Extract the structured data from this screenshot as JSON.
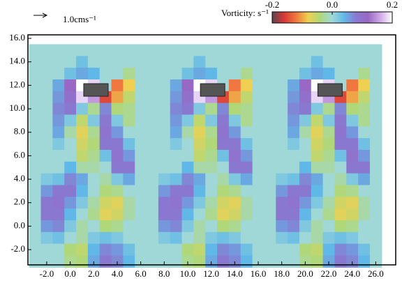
{
  "chart_data": {
    "type": "heatmap",
    "title": "Vorticity: s⁻¹",
    "scale_label": "1.0cms⁻¹",
    "x": [
      -3,
      -2,
      -1,
      0,
      1,
      2,
      3,
      4,
      5,
      6,
      7,
      8,
      9,
      10,
      11,
      12,
      13,
      14,
      15,
      16,
      17,
      18,
      19,
      20,
      21,
      22,
      23,
      24,
      25,
      26
    ],
    "y": [
      15,
      14,
      13,
      12,
      11,
      10,
      9,
      8,
      7,
      6,
      5,
      4,
      3,
      2,
      1,
      0,
      -1,
      -2,
      -3
    ],
    "values": [
      [
        0,
        0,
        0,
        0,
        0,
        0,
        0,
        0,
        0,
        0,
        0,
        0,
        0,
        0,
        0,
        0,
        0,
        0,
        0,
        0,
        0,
        0,
        0,
        0,
        0,
        0,
        0,
        0,
        0,
        0
      ],
      [
        0,
        0,
        0,
        0,
        0.03,
        0,
        0,
        0,
        0,
        0,
        0,
        0,
        0,
        0,
        0.03,
        0,
        0,
        0,
        0,
        0,
        0,
        0,
        0,
        0,
        0.03,
        0,
        0,
        0,
        0,
        0
      ],
      [
        0,
        0,
        0,
        0.03,
        0.05,
        0.04,
        0,
        0,
        -0.03,
        0,
        0,
        0,
        0,
        0.03,
        0.05,
        0.04,
        0,
        0,
        -0.03,
        0,
        0,
        0,
        0,
        0.03,
        0.05,
        0.04,
        0,
        0,
        -0.03,
        0
      ],
      [
        0,
        0,
        0.05,
        0.12,
        0.2,
        0.18,
        0,
        -0.12,
        -0.08,
        0,
        0,
        0,
        0.05,
        0.12,
        0.2,
        0.18,
        0,
        -0.12,
        -0.08,
        0,
        0,
        0,
        0.05,
        0.12,
        0.2,
        0.18,
        0,
        -0.12,
        -0.08,
        0
      ],
      [
        0,
        0,
        0.06,
        0.1,
        0.18,
        0.15,
        -0.15,
        -0.1,
        -0.05,
        0,
        0,
        0,
        0.06,
        0.1,
        0.18,
        0.15,
        -0.15,
        -0.1,
        -0.05,
        0,
        0,
        0,
        0.06,
        0.1,
        0.18,
        0.15,
        -0.15,
        -0.1,
        -0.05,
        0
      ],
      [
        0,
        0,
        0.07,
        0.08,
        0.02,
        -0.03,
        0.07,
        -0.04,
        -0.03,
        0,
        0,
        0,
        0.07,
        0.08,
        0.02,
        -0.03,
        0.07,
        -0.04,
        -0.03,
        0,
        0,
        0,
        0.07,
        0.08,
        0.02,
        -0.03,
        0.07,
        -0.04,
        -0.03,
        0
      ],
      [
        0,
        0,
        0.06,
        0.02,
        -0.05,
        0.02,
        0.08,
        0.02,
        -0.03,
        0,
        0,
        0,
        0.06,
        0.02,
        -0.05,
        0.02,
        0.08,
        0.02,
        -0.03,
        0,
        0,
        0,
        0.06,
        0.02,
        -0.05,
        0.02,
        0.08,
        0.02,
        -0.03,
        0
      ],
      [
        0,
        0,
        0.05,
        -0.02,
        -0.07,
        -0.03,
        0.09,
        0.06,
        0,
        0,
        0,
        0,
        0.05,
        -0.02,
        -0.07,
        -0.03,
        0.09,
        0.06,
        0,
        0,
        0,
        0,
        0.05,
        -0.02,
        -0.07,
        -0.03,
        0.09,
        0.06,
        0,
        0
      ],
      [
        0,
        0,
        0.02,
        0,
        -0.06,
        -0.04,
        0.08,
        0.08,
        0.03,
        0,
        0,
        0,
        0.02,
        0,
        -0.06,
        -0.04,
        0.08,
        0.08,
        0.03,
        0,
        0,
        0,
        0.02,
        0,
        -0.06,
        -0.04,
        0.08,
        0.08,
        0.03,
        0
      ],
      [
        0,
        0,
        0,
        0,
        -0.05,
        -0.03,
        0.03,
        0.09,
        0.06,
        0,
        0,
        0,
        0,
        0,
        -0.05,
        -0.03,
        0.03,
        0.09,
        0.06,
        0,
        0,
        0,
        0,
        0,
        -0.05,
        -0.03,
        0.03,
        0.09,
        0.06,
        0
      ],
      [
        0,
        0,
        0,
        0.04,
        -0.02,
        -0.02,
        0,
        0.08,
        0.08,
        0,
        0,
        0,
        0,
        0.04,
        -0.02,
        -0.02,
        0,
        0.08,
        0.08,
        0,
        0,
        0,
        0,
        0.04,
        -0.02,
        -0.02,
        0,
        0.08,
        0.08,
        0
      ],
      [
        0,
        0.02,
        0.03,
        0.07,
        0.05,
        0,
        -0.02,
        0.02,
        0.05,
        0,
        0,
        0.02,
        0.03,
        0.07,
        0.05,
        0,
        -0.02,
        0.02,
        0.05,
        0,
        0,
        0.02,
        0.03,
        0.07,
        0.05,
        0,
        -0.02,
        0.02,
        0.05,
        0
      ],
      [
        0,
        0.06,
        0.08,
        0.08,
        0.04,
        0,
        -0.04,
        -0.03,
        0,
        0,
        0,
        0.06,
        0.08,
        0.08,
        0.04,
        0,
        -0.04,
        -0.03,
        0,
        0,
        0,
        0.06,
        0.08,
        0.08,
        0.04,
        0,
        -0.04,
        -0.03,
        0,
        0
      ],
      [
        0,
        0.08,
        0.09,
        0.06,
        0.02,
        -0.02,
        -0.06,
        -0.07,
        -0.02,
        0,
        0,
        0.08,
        0.09,
        0.06,
        0.02,
        -0.02,
        -0.06,
        -0.07,
        -0.02,
        0,
        0,
        0.08,
        0.09,
        0.06,
        0.02,
        -0.02,
        -0.06,
        -0.07,
        -0.02,
        0
      ],
      [
        0,
        0.08,
        0.08,
        0.04,
        0,
        -0.03,
        -0.07,
        -0.06,
        -0.02,
        0,
        0,
        0.08,
        0.08,
        0.04,
        0,
        -0.03,
        -0.07,
        -0.06,
        -0.02,
        0,
        0,
        0.08,
        0.08,
        0.04,
        0,
        -0.03,
        -0.07,
        -0.06,
        -0.02,
        0
      ],
      [
        0,
        0.06,
        0.07,
        0.02,
        -0.02,
        0,
        -0.04,
        -0.03,
        0,
        0,
        0,
        0.06,
        0.07,
        0.02,
        -0.02,
        0,
        -0.04,
        -0.03,
        0,
        0,
        0,
        0.06,
        0.07,
        0.02,
        -0.02,
        0,
        -0.04,
        -0.03,
        0,
        0
      ],
      [
        0,
        0.02,
        0.03,
        0,
        -0.02,
        0.02,
        0.03,
        0.02,
        0,
        0,
        0,
        0.02,
        0.03,
        0,
        -0.02,
        0.02,
        0.03,
        0.02,
        0,
        0,
        0,
        0.02,
        0.03,
        0,
        -0.02,
        0.02,
        0.03,
        0.02,
        0,
        0
      ],
      [
        0,
        0,
        0,
        -0.04,
        -0.05,
        0.04,
        0.07,
        0.06,
        0.03,
        0,
        0,
        0,
        0,
        -0.04,
        -0.05,
        0.04,
        0.07,
        0.06,
        0.03,
        0,
        0,
        0,
        0,
        -0.04,
        -0.05,
        0.04,
        0.07,
        0.06,
        0.03,
        0
      ],
      [
        0,
        0,
        0,
        -0.03,
        -0.04,
        0.05,
        0.08,
        0.07,
        0.04,
        0,
        0,
        0,
        0,
        -0.03,
        -0.04,
        0.05,
        0.08,
        0.07,
        0.04,
        0,
        0,
        0,
        0,
        -0.03,
        -0.04,
        0.05,
        0.08,
        0.07,
        0.04,
        0
      ]
    ],
    "xlim": [
      -3.6,
      27.7
    ],
    "ylim": [
      -3.3,
      16.3
    ],
    "xticks": [
      {
        "value": -2,
        "label": "-2.0"
      },
      {
        "value": 0,
        "label": "0.0"
      },
      {
        "value": 2,
        "label": "2.0"
      },
      {
        "value": 4,
        "label": "4.0"
      },
      {
        "value": 6,
        "label": "6.0"
      },
      {
        "value": 8,
        "label": "8.0"
      },
      {
        "value": 10,
        "label": "10.0"
      },
      {
        "value": 12,
        "label": "12.0"
      },
      {
        "value": 14,
        "label": "14.0"
      },
      {
        "value": 16,
        "label": "16.0"
      },
      {
        "value": 18,
        "label": "18.0"
      },
      {
        "value": 20,
        "label": "20.0"
      },
      {
        "value": 22,
        "label": "22.0"
      },
      {
        "value": 24,
        "label": "24.0"
      },
      {
        "value": 26,
        "label": "26.0"
      }
    ],
    "yticks": [
      {
        "value": -2,
        "label": "-2.0"
      },
      {
        "value": 0,
        "label": "0.0"
      },
      {
        "value": 2,
        "label": "2.0"
      },
      {
        "value": 4,
        "label": "4.0"
      },
      {
        "value": 6,
        "label": "6.0"
      },
      {
        "value": 8,
        "label": "8.0"
      },
      {
        "value": 10,
        "label": "10.0"
      },
      {
        "value": 12,
        "label": "12.0"
      },
      {
        "value": 14,
        "label": "14.0"
      },
      {
        "value": 16,
        "label": "16.0"
      }
    ],
    "clim": [
      -0.2,
      0.2
    ],
    "cticks": [
      -0.2,
      {
        "value": 0,
        "label": "0.0"
      },
      0.2
    ],
    "colormap": [
      "#5a4650",
      "#d83838",
      "#f07840",
      "#f0d050",
      "#b0d878",
      "#a0d8d8",
      "#60b8e8",
      "#8a78d0",
      "#9868c4",
      "#d0a8e8",
      "#ffffff"
    ],
    "bodies": [
      {
        "x": [
          1.15,
          3.23
        ],
        "y": [
          11.07,
          12.14
        ]
      },
      {
        "x": [
          11.08,
          13.16
        ],
        "y": [
          11.07,
          12.14
        ]
      },
      {
        "x": [
          21.07,
          23.15
        ],
        "y": [
          11.07,
          12.14
        ]
      }
    ],
    "body_color": "#555555"
  }
}
